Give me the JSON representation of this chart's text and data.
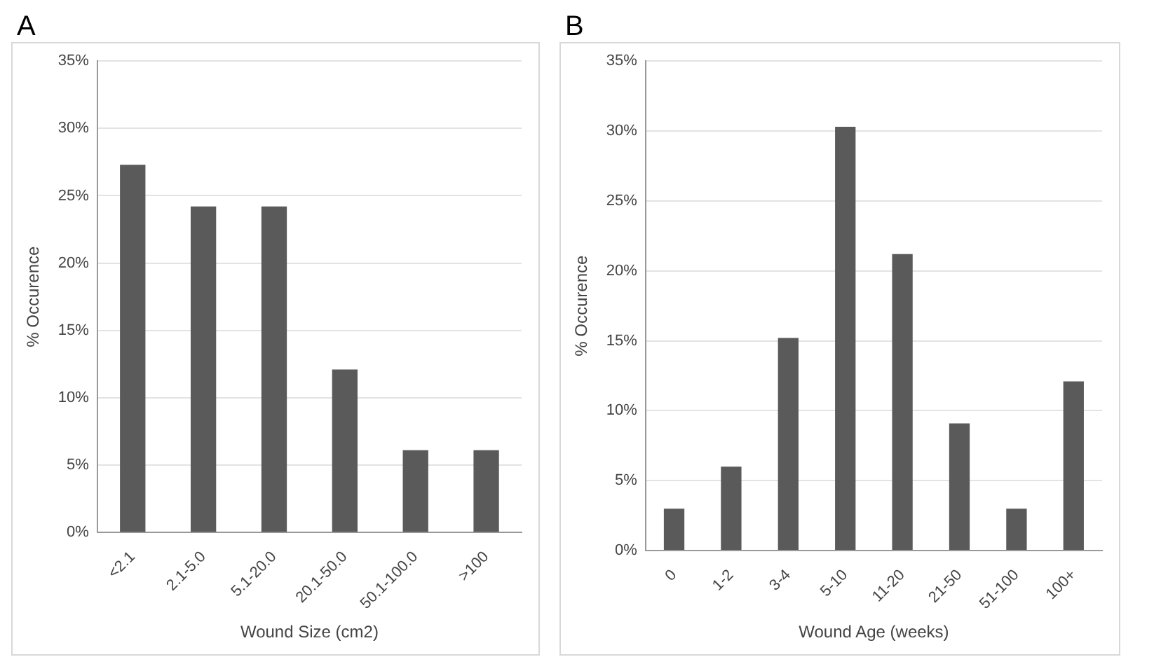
{
  "chart_data": [
    {
      "type": "bar",
      "title": "A",
      "xlabel": "Wound Size (cm2)",
      "ylabel": "% Occurence",
      "categories": [
        "<2.1",
        "2.1-5.0",
        "5.1-20.0",
        "20.1-50.0",
        "50.1-100.0",
        ">100"
      ],
      "values": [
        27.3,
        24.2,
        24.2,
        12.1,
        6.1,
        6.1
      ],
      "color": "#5a5a5a",
      "ylim": [
        0,
        35
      ],
      "yticks": [
        {
          "value": 0,
          "label": "0%"
        },
        {
          "value": 5,
          "label": "5%"
        },
        {
          "value": 10,
          "label": "10%"
        },
        {
          "value": 15,
          "label": "15%"
        },
        {
          "value": 20,
          "label": "20%"
        },
        {
          "value": 25,
          "label": "25%"
        },
        {
          "value": 30,
          "label": "30%"
        },
        {
          "value": 35,
          "label": "35%"
        }
      ],
      "grid": "y",
      "legend": false
    },
    {
      "type": "bar",
      "title": "B",
      "xlabel": "Wound Age (weeks)",
      "ylabel": "% Occurence",
      "categories": [
        "0",
        "1-2",
        "3-4",
        "5-10",
        "11-20",
        "21-50",
        "51-100",
        "100+"
      ],
      "values": [
        3,
        6,
        15.2,
        30.3,
        21.2,
        9.1,
        3,
        12.1
      ],
      "color": "#5a5a5a",
      "ylim": [
        0,
        35
      ],
      "yticks": [
        {
          "value": 0,
          "label": "0%"
        },
        {
          "value": 5,
          "label": "5%"
        },
        {
          "value": 10,
          "label": "10%"
        },
        {
          "value": 15,
          "label": "15%"
        },
        {
          "value": 20,
          "label": "20%"
        },
        {
          "value": 25,
          "label": "25%"
        },
        {
          "value": 30,
          "label": "30%"
        },
        {
          "value": 35,
          "label": "35%"
        }
      ],
      "grid": "y",
      "legend": false
    }
  ]
}
